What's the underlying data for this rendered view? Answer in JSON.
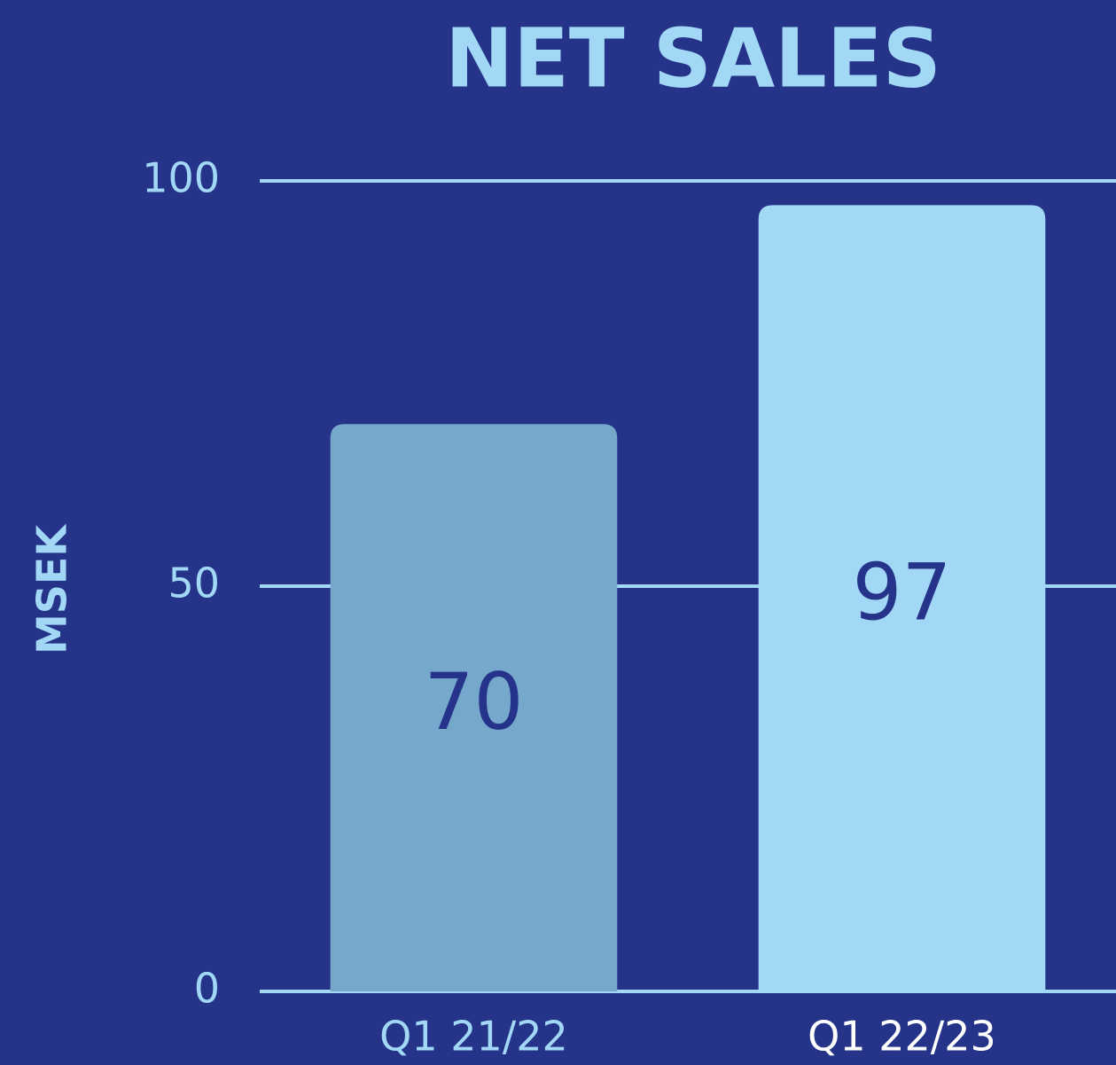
{
  "chart_data": {
    "type": "bar",
    "title": "NET SALES",
    "y_label": "MSEK",
    "categories": [
      "Q1 21/22",
      "Q1 22/23"
    ],
    "values": [
      70,
      97
    ],
    "colors": [
      "#76a8cc",
      "#a2d8f5"
    ],
    "category_label_colors": [
      "#a2d8f5",
      "#ffffff"
    ],
    "ylim": [
      0,
      100
    ],
    "yticks": [
      0,
      50,
      100
    ],
    "grid": true
  }
}
